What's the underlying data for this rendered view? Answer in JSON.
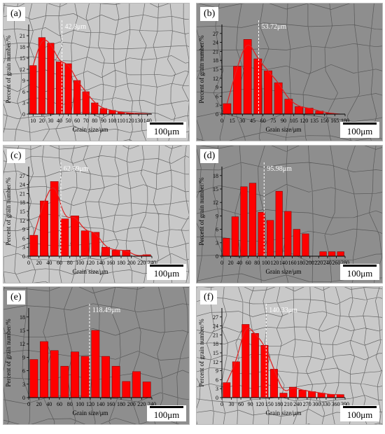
{
  "colors": {
    "bar_fill": "#ff0000",
    "bar_stroke": "#8b0000",
    "fit_curve": "#dd2222",
    "mean_line": "#ffffff",
    "micrograph_light": "#c9c9c9",
    "micrograph_dark": "#8e8e8e",
    "grain_boundary": "#474747"
  },
  "scale_bar_label": "100μm",
  "chart_data": [
    {
      "panel_label": "(a)",
      "type": "bar",
      "background": "light",
      "fit_curve": true,
      "xlabel": "Grain size/μm",
      "ylabel": "Percent of grain number/%",
      "x_ticks": [
        "10",
        "20",
        "30",
        "40",
        "50",
        "60",
        "70",
        "80",
        "90",
        "100",
        "110",
        "120",
        "130",
        "140"
      ],
      "categories": [
        "10",
        "20",
        "30",
        "40",
        "50",
        "60",
        "70",
        "80",
        "90",
        "100",
        "110",
        "120",
        "130",
        "140"
      ],
      "values": [
        13,
        20.5,
        19,
        14,
        13.5,
        9,
        6,
        3,
        1.5,
        1,
        0.5,
        0.3,
        0.2,
        0.1
      ],
      "ylim": [
        0,
        24
      ],
      "y_ticks": [
        "0",
        "3",
        "6",
        "9",
        "12",
        "15",
        "18",
        "21"
      ],
      "mean_value": 42.8,
      "mean_label": "42.8μm"
    },
    {
      "panel_label": "(b)",
      "type": "bar",
      "background": "dark",
      "fit_curve": true,
      "xlabel": "Grain size/μm",
      "ylabel": "Percent of grain number/%",
      "x_ticks": [
        "0",
        "15",
        "30",
        "45",
        "60",
        "75",
        "90",
        "105",
        "120",
        "135",
        "150",
        "165",
        "180"
      ],
      "categories": [
        "15",
        "30",
        "45",
        "60",
        "75",
        "90",
        "105",
        "120",
        "135",
        "150",
        "165",
        "180"
      ],
      "values": [
        3.5,
        16,
        25,
        18.5,
        14.5,
        10.5,
        5,
        2.5,
        2,
        1,
        0.3,
        0
      ],
      "ylim": [
        0,
        30
      ],
      "y_ticks": [
        "0",
        "3",
        "6",
        "9",
        "12",
        "15",
        "18",
        "21",
        "24",
        "27"
      ],
      "mean_value": 53.72,
      "mean_label": "53.72μm"
    },
    {
      "panel_label": "(c)",
      "type": "bar",
      "background": "light",
      "fit_curve": true,
      "xlabel": "Grain size/μm",
      "ylabel": "Percent of grain number/%",
      "x_ticks": [
        "0",
        "20",
        "40",
        "60",
        "80",
        "100",
        "120",
        "140",
        "160",
        "180",
        "200",
        "220",
        "240"
      ],
      "categories": [
        "20",
        "40",
        "60",
        "80",
        "100",
        "120",
        "140",
        "160",
        "180",
        "200",
        "220",
        "240"
      ],
      "values": [
        7,
        18.5,
        25,
        12.5,
        13.5,
        8.5,
        8,
        3,
        2,
        2,
        0,
        0.5
      ],
      "ylim": [
        0,
        30
      ],
      "y_ticks": [
        "0",
        "3",
        "6",
        "9",
        "12",
        "15",
        "18",
        "21",
        "24",
        "27"
      ],
      "mean_value": 62.59,
      "mean_label": "62.59μm"
    },
    {
      "panel_label": "(d)",
      "type": "bar",
      "background": "dark",
      "fit_curve": false,
      "xlabel": "Grain size/μm",
      "ylabel": "Percent of grain number/%",
      "x_ticks": [
        "0",
        "20",
        "40",
        "60",
        "80",
        "100",
        "120",
        "140",
        "160",
        "180",
        "200",
        "220",
        "240",
        "260",
        "280"
      ],
      "categories": [
        "20",
        "40",
        "60",
        "80",
        "100",
        "120",
        "140",
        "160",
        "180",
        "200",
        "220",
        "240",
        "260",
        "280"
      ],
      "values": [
        4,
        8.8,
        15.5,
        16.3,
        9.8,
        8,
        14.5,
        10,
        6,
        5,
        0,
        1,
        1,
        1
      ],
      "ylim": [
        0,
        20
      ],
      "y_ticks": [
        "0",
        "3",
        "6",
        "9",
        "12",
        "15",
        "18"
      ],
      "mean_value": 95.98,
      "mean_label": "95.98μm"
    },
    {
      "panel_label": "(e)",
      "type": "bar",
      "background": "dark",
      "fit_curve": false,
      "xlabel": "Grain size/μm",
      "ylabel": "Percent of grain number/%",
      "x_ticks": [
        "0",
        "20",
        "40",
        "60",
        "80",
        "100",
        "120",
        "140",
        "160",
        "180",
        "200",
        "220",
        "240"
      ],
      "categories": [
        "20",
        "40",
        "60",
        "80",
        "100",
        "120",
        "140",
        "160",
        "180",
        "200",
        "220",
        "240"
      ],
      "values": [
        8.5,
        12.5,
        10.5,
        7,
        10.2,
        9.2,
        15,
        9.2,
        7,
        3.6,
        5.8,
        3.5
      ],
      "ylim": [
        0,
        20
      ],
      "y_ticks": [
        "0",
        "3",
        "6",
        "9",
        "12",
        "15",
        "18"
      ],
      "mean_value": 118.49,
      "mean_label": "118.49μm"
    },
    {
      "panel_label": "(f)",
      "type": "bar",
      "background": "light",
      "fit_curve": true,
      "xlabel": "Grain size/μm",
      "ylabel": "Percent of grain number/%",
      "x_ticks": [
        "0",
        "30",
        "60",
        "90",
        "120",
        "150",
        "180",
        "210",
        "240",
        "270",
        "300",
        "330",
        "360",
        "390"
      ],
      "categories": [
        "30",
        "60",
        "90",
        "120",
        "150",
        "180",
        "210",
        "240",
        "270",
        "300",
        "330",
        "360",
        "390"
      ],
      "values": [
        5,
        12,
        24.5,
        21.5,
        17.5,
        9.5,
        1.5,
        3.5,
        2.5,
        2,
        1.5,
        1,
        1
      ],
      "ylim": [
        0,
        30
      ],
      "y_ticks": [
        "0",
        "3",
        "6",
        "9",
        "12",
        "15",
        "18",
        "21",
        "24",
        "27"
      ],
      "mean_value": 140.33,
      "mean_label": "140.33μm"
    }
  ]
}
